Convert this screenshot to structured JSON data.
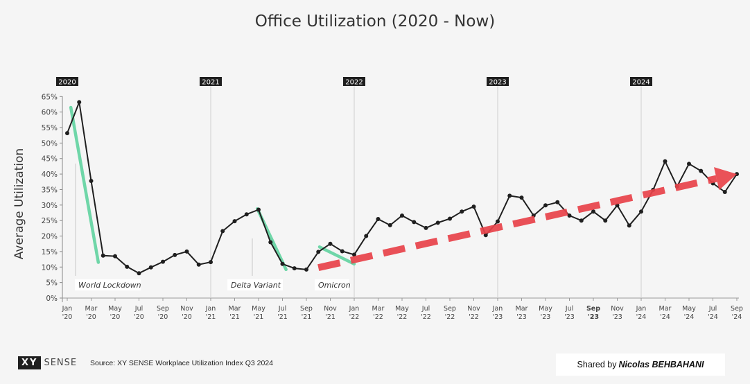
{
  "chart_data": {
    "type": "line",
    "title": "Office Utilization (2020 - Now)",
    "ylabel": "Average Utilization",
    "ylim": [
      0,
      65
    ],
    "y_ticks": [
      "0%",
      "5%",
      "10%",
      "15%",
      "20%",
      "25%",
      "30%",
      "35%",
      "40%",
      "45%",
      "50%",
      "55%",
      "60%",
      "65%"
    ],
    "grid": false,
    "series": [
      {
        "values": [
          53.2,
          63.2,
          37.8,
          13.7,
          13.5,
          10.1,
          8.0,
          9.9,
          11.7,
          13.9,
          15.0,
          10.8,
          11.6,
          21.6,
          24.8,
          27.0,
          28.5,
          18.0,
          11.0,
          9.6,
          9.2,
          14.9,
          17.5,
          15.1,
          14.0,
          20.0,
          25.5,
          23.5,
          26.6,
          24.5,
          22.6,
          24.3,
          25.6,
          27.9,
          29.5,
          20.3,
          24.7,
          33.0,
          32.4,
          26.6,
          29.9,
          30.9,
          26.6,
          25.0,
          27.9,
          25.0,
          29.9,
          23.4,
          27.9,
          34.9,
          44.1,
          36.0,
          43.3,
          41.0,
          37.0,
          34.2,
          40.0
        ]
      }
    ],
    "x_tick_labels": [
      {
        "month": "Jan",
        "year": "'20"
      },
      {
        "month": "Mar",
        "year": "'20"
      },
      {
        "month": "May",
        "year": "'20"
      },
      {
        "month": "Jul",
        "year": "'20"
      },
      {
        "month": "Sep",
        "year": "'20"
      },
      {
        "month": "Nov",
        "year": "'20"
      },
      {
        "month": "Jan",
        "year": "'21"
      },
      {
        "month": "Mar",
        "year": "'21"
      },
      {
        "month": "May",
        "year": "'21"
      },
      {
        "month": "Jul",
        "year": "'21"
      },
      {
        "month": "Sep",
        "year": "'21"
      },
      {
        "month": "Nov",
        "year": "'21"
      },
      {
        "month": "Jan",
        "year": "'22"
      },
      {
        "month": "Mar",
        "year": "'22"
      },
      {
        "month": "May",
        "year": "'22"
      },
      {
        "month": "Jul",
        "year": "'22"
      },
      {
        "month": "Sep",
        "year": "'22"
      },
      {
        "month": "Nov",
        "year": "'22"
      },
      {
        "month": "Jan",
        "year": "'23"
      },
      {
        "month": "Mar",
        "year": "'23"
      },
      {
        "month": "May",
        "year": "'23"
      },
      {
        "month": "Jul",
        "year": "'23"
      },
      {
        "month": "Sep",
        "year": "'23",
        "bold": true
      },
      {
        "month": "Nov",
        "year": "'23"
      },
      {
        "month": "Jan",
        "year": "'24"
      },
      {
        "month": "Mar",
        "year": "'24"
      },
      {
        "month": "May",
        "year": "'24"
      },
      {
        "month": "Jul",
        "year": "'24"
      },
      {
        "month": "Sep",
        "year": "'24"
      }
    ],
    "year_markers": [
      "2020",
      "2021",
      "2022",
      "2023",
      "2024"
    ],
    "annotations": [
      {
        "label": "World Lockdown",
        "start_month": 0.3,
        "start_value": 61.5,
        "end_month": 2.6,
        "end_value": 11.5
      },
      {
        "label": "Delta Variant",
        "start_month": 15.9,
        "start_value": 28.8,
        "end_month": 18.3,
        "end_value": 9.2
      },
      {
        "label": "Omicron",
        "start_month": 21.1,
        "start_value": 16.5,
        "end_month": 24.0,
        "end_value": 11.0
      }
    ],
    "trend_arrow": {
      "start_month": 21.0,
      "start_value": 9.8,
      "end_month": 56.0,
      "end_value": 40.0
    },
    "colors": {
      "line": "#1f1f1f",
      "annotation": "#6fd6a8",
      "trend": "#e8434a",
      "year_marker_bg": "#1f1f1f",
      "year_marker_text": "#ffffff"
    }
  },
  "footer": {
    "logo_mark": "XY",
    "logo_text": "SENSE",
    "source": "Source: XY SENSE Workplace Utilization Index Q3 2024",
    "shared_prefix": "Shared by",
    "shared_name": "Nicolas BEHBAHANI"
  }
}
